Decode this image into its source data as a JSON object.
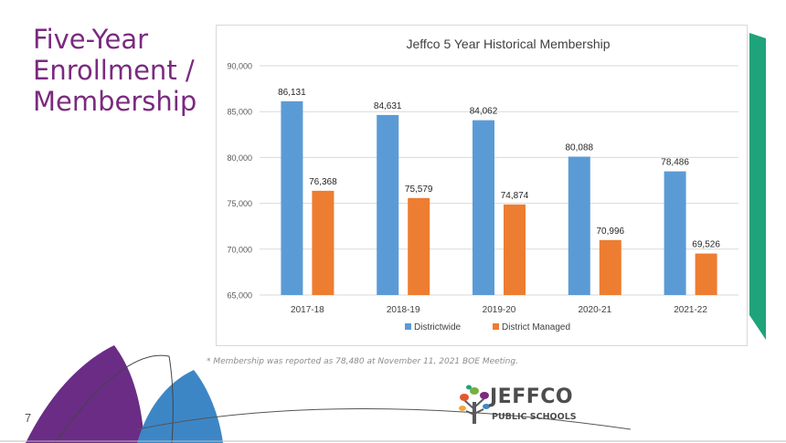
{
  "slide": {
    "title_lines": [
      "Five-Year",
      "Enrollment /",
      "Membership"
    ],
    "footnote": "* Membership was reported as 78,480 at November 11, 2021 BOE Meeting.",
    "page_number": "7",
    "title_color": "#7a2a7f",
    "accent_colors": {
      "purple": "#6b2c86",
      "blue": "#3d86c6",
      "green": "#1fa37a"
    }
  },
  "logo": {
    "name": "JEFFCO",
    "subtitle": "PUBLIC SCHOOLS",
    "icon": "tree-icon"
  },
  "chart_data": {
    "type": "bar",
    "title": "Jeffco 5 Year Historical Membership",
    "xlabel": "",
    "ylabel": "",
    "categories": [
      "2017-18",
      "2018-19",
      "2019-20",
      "2020-21",
      "2021-22"
    ],
    "series": [
      {
        "name": "Districtwide",
        "color": "#5b9bd5",
        "values": [
          86131,
          84631,
          84062,
          80088,
          78486
        ],
        "labels": [
          "86,131",
          "84,631",
          "84,062",
          "80,088",
          "78,486"
        ]
      },
      {
        "name": "District Managed",
        "color": "#ed7d31",
        "values": [
          76368,
          75579,
          74874,
          70996,
          69526
        ],
        "labels": [
          "76,368",
          "75,579",
          "74,874",
          "70,996",
          "69,526"
        ]
      }
    ],
    "ylim": [
      65000,
      90000
    ],
    "yticks": [
      65000,
      70000,
      75000,
      80000,
      85000,
      90000
    ],
    "ytick_labels": [
      "65,000",
      "70,000",
      "75,000",
      "80,000",
      "85,000",
      "90,000"
    ],
    "grid": true,
    "legend_position": "bottom"
  }
}
